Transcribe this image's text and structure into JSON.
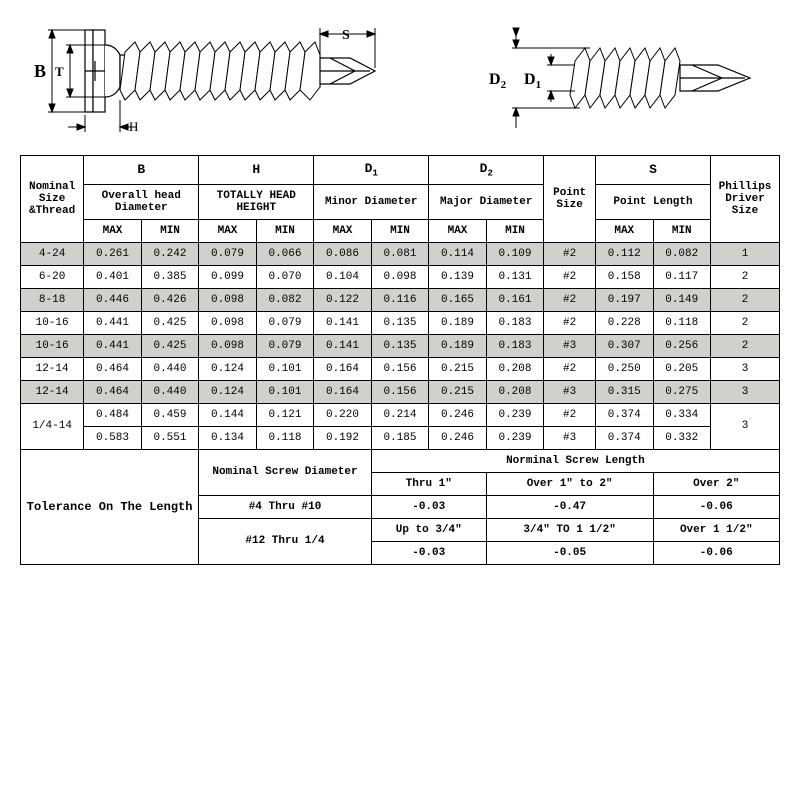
{
  "diagram": {
    "labels": {
      "B": "B",
      "T": "T",
      "H": "H",
      "S": "S",
      "D1": "D",
      "D1sub": "1",
      "D2": "D",
      "D2sub": "2"
    }
  },
  "headers": {
    "nominal": "Nominal Size &Thread",
    "point_size": "Point Size",
    "phillips": "Phillips Driver Size",
    "cols": {
      "B": {
        "letter": "B",
        "desc": "Overall head Diameter"
      },
      "H": {
        "letter": "H",
        "desc": "TOTALLY HEAD HEIGHT"
      },
      "D1": {
        "letter": "D",
        "sub": "1",
        "desc": "Minor Diameter"
      },
      "D2": {
        "letter": "D",
        "sub": "2",
        "desc": "Major Diameter"
      },
      "S": {
        "letter": "S",
        "desc": "Point Length"
      }
    },
    "max": "MAX",
    "min": "MIN"
  },
  "rows": [
    {
      "size": "4-24",
      "B_max": "0.261",
      "B_min": "0.242",
      "H_max": "0.079",
      "H_min": "0.066",
      "D1_max": "0.086",
      "D1_min": "0.081",
      "D2_max": "0.114",
      "D2_min": "0.109",
      "pt": "#2",
      "S_max": "0.112",
      "S_min": "0.082",
      "phil": "1",
      "shaded": true,
      "rowspan": 1
    },
    {
      "size": "6-20",
      "B_max": "0.401",
      "B_min": "0.385",
      "H_max": "0.099",
      "H_min": "0.070",
      "D1_max": "0.104",
      "D1_min": "0.098",
      "D2_max": "0.139",
      "D2_min": "0.131",
      "pt": "#2",
      "S_max": "0.158",
      "S_min": "0.117",
      "phil": "2",
      "shaded": false,
      "rowspan": 1
    },
    {
      "size": "8-18",
      "B_max": "0.446",
      "B_min": "0.426",
      "H_max": "0.098",
      "H_min": "0.082",
      "D1_max": "0.122",
      "D1_min": "0.116",
      "D2_max": "0.165",
      "D2_min": "0.161",
      "pt": "#2",
      "S_max": "0.197",
      "S_min": "0.149",
      "phil": "2",
      "shaded": true,
      "rowspan": 1
    },
    {
      "size": "10-16",
      "B_max": "0.441",
      "B_min": "0.425",
      "H_max": "0.098",
      "H_min": "0.079",
      "D1_max": "0.141",
      "D1_min": "0.135",
      "D2_max": "0.189",
      "D2_min": "0.183",
      "pt": "#2",
      "S_max": "0.228",
      "S_min": "0.118",
      "phil": "2",
      "shaded": false,
      "rowspan": 1
    },
    {
      "size": "10-16",
      "B_max": "0.441",
      "B_min": "0.425",
      "H_max": "0.098",
      "H_min": "0.079",
      "D1_max": "0.141",
      "D1_min": "0.135",
      "D2_max": "0.189",
      "D2_min": "0.183",
      "pt": "#3",
      "S_max": "0.307",
      "S_min": "0.256",
      "phil": "2",
      "shaded": true,
      "rowspan": 1
    },
    {
      "size": "12-14",
      "B_max": "0.464",
      "B_min": "0.440",
      "H_max": "0.124",
      "H_min": "0.101",
      "D1_max": "0.164",
      "D1_min": "0.156",
      "D2_max": "0.215",
      "D2_min": "0.208",
      "pt": "#2",
      "S_max": "0.250",
      "S_min": "0.205",
      "phil": "3",
      "shaded": false,
      "rowspan": 1
    },
    {
      "size": "12-14",
      "B_max": "0.464",
      "B_min": "0.440",
      "H_max": "0.124",
      "H_min": "0.101",
      "D1_max": "0.164",
      "D1_min": "0.156",
      "D2_max": "0.215",
      "D2_min": "0.208",
      "pt": "#3",
      "S_max": "0.315",
      "S_min": "0.275",
      "phil": "3",
      "shaded": true,
      "rowspan": 1
    },
    {
      "size": "1/4-14",
      "B_max": "0.484",
      "B_min": "0.459",
      "H_max": "0.144",
      "H_min": "0.121",
      "D1_max": "0.220",
      "D1_min": "0.214",
      "D2_max": "0.246",
      "D2_min": "0.239",
      "pt": "#2",
      "S_max": "0.374",
      "S_min": "0.334",
      "phil": "3",
      "shaded": false,
      "rowspan": 2
    },
    {
      "size": null,
      "B_max": "0.583",
      "B_min": "0.551",
      "H_max": "0.134",
      "H_min": "0.118",
      "D1_max": "0.192",
      "D1_min": "0.185",
      "D2_max": "0.246",
      "D2_min": "0.239",
      "pt": "#3",
      "S_max": "0.374",
      "S_min": "0.332",
      "phil": null,
      "shaded": false,
      "rowspan": 0
    }
  ],
  "tolerance": {
    "label": "Tolerance On The Length",
    "nom_diam": "Nominal Screw Diameter",
    "norm_len": "Norminal Screw Length",
    "r1": {
      "diam": "#4 Thru #10",
      "c1h": "Thru 1\"",
      "c2h": "Over 1\" to 2\"",
      "c3h": "Over 2\"",
      "c1": "-0.03",
      "c2": "-0.47",
      "c3": "-0.06"
    },
    "r2": {
      "diam": "#12 Thru 1/4",
      "c1h": "Up to 3/4\"",
      "c2h": "3/4\" TO 1 1/2\"",
      "c3h": "Over 1 1/2\"",
      "c1": "-0.03",
      "c2": "-0.05",
      "c3": "-0.06"
    }
  }
}
